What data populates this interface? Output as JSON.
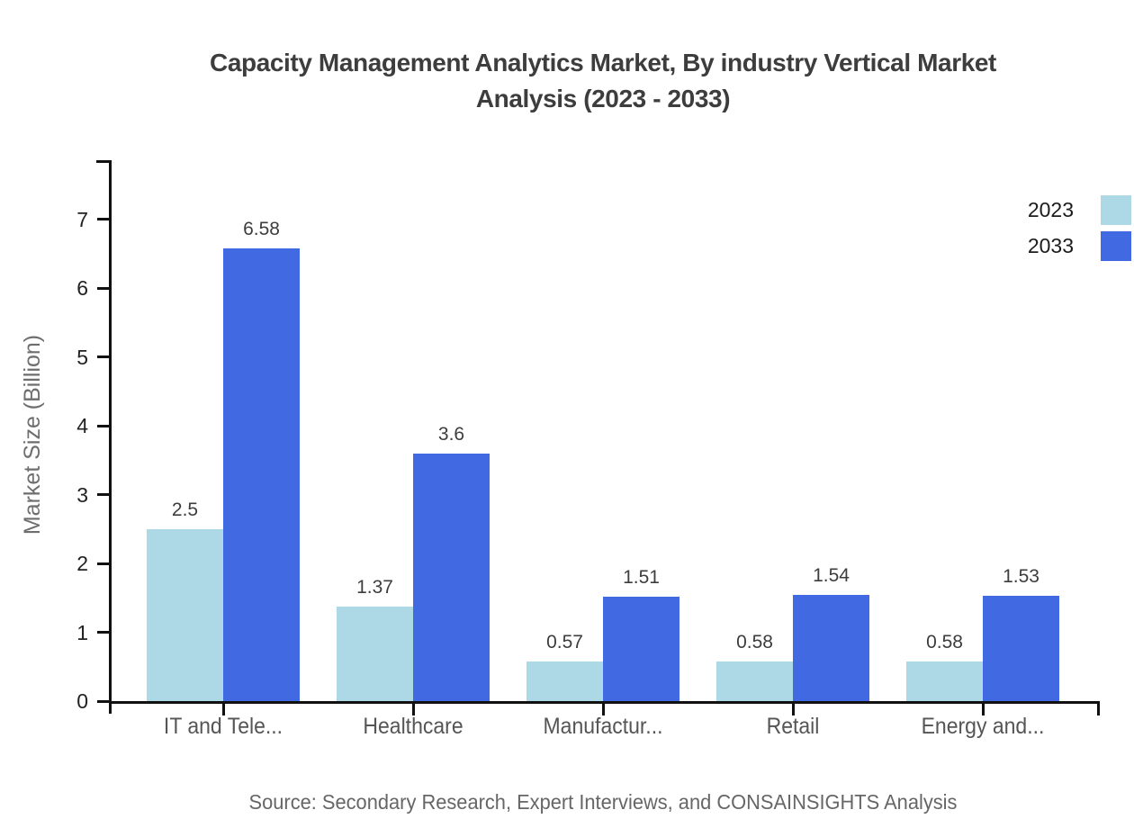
{
  "title": "Capacity Management Analytics Market, By industry Vertical Market Analysis (2023 - 2033)",
  "source_note": "Source: Secondary Research, Expert Interviews, and CONSAINSIGHTS Analysis",
  "colors": {
    "series_2023": "#ADD8E6",
    "series_2033": "#4169E1",
    "axis": "#111111",
    "title_text": "#3d3d3d",
    "category_text": "#555555",
    "muted_text": "#666666"
  },
  "legend": {
    "items": [
      {
        "label": "2023",
        "color": "#ADD8E6"
      },
      {
        "label": "2033",
        "color": "#4169E1"
      }
    ]
  },
  "chart_data": {
    "type": "bar",
    "title": "Capacity Management Analytics Market, By industry Vertical Market Analysis (2023 - 2033)",
    "xlabel": "",
    "ylabel": "Market Size (Billion)",
    "categories": [
      "IT and Tele...",
      "Healthcare",
      "Manufactur...",
      "Retail",
      "Energy and..."
    ],
    "series": [
      {
        "name": "2023",
        "color": "#ADD8E6",
        "values": [
          2.5,
          1.37,
          0.57,
          0.58,
          0.58
        ]
      },
      {
        "name": "2033",
        "color": "#4169E1",
        "values": [
          6.58,
          3.6,
          1.51,
          1.54,
          1.53
        ]
      }
    ],
    "data_labels": [
      "2.5",
      "6.58",
      "1.37",
      "3.6",
      "0.57",
      "1.51",
      "0.58",
      "1.54",
      "0.58",
      "1.53"
    ],
    "ylim": [
      0,
      7.85
    ],
    "yticks": [
      0,
      1,
      2,
      3,
      4,
      5,
      6,
      7
    ],
    "grid": false,
    "legend_position": "top-right"
  }
}
